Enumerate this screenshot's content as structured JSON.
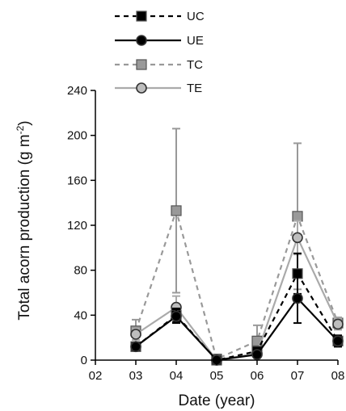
{
  "chart_data": {
    "type": "line",
    "title": "",
    "xlabel": "Date (year)",
    "ylabel": "Total acorn production (g m",
    "ylabel_sup": "-2",
    "ylabel_end": ")",
    "x": [
      "02",
      "03",
      "04",
      "05",
      "06",
      "07",
      "08"
    ],
    "ylim": [
      0,
      240
    ],
    "yticks": [
      "0",
      "40",
      "80",
      "120",
      "160",
      "200",
      "240"
    ],
    "grid": false,
    "legend_position": "top-left",
    "series": [
      {
        "name": "UC",
        "style": "dashed",
        "marker": "square",
        "line_color": "#000000",
        "marker_fill": "#000000",
        "values": [
          null,
          12,
          40,
          0,
          8,
          77,
          17
        ],
        "errors": [
          null,
          3,
          6,
          1,
          3,
          18,
          5
        ]
      },
      {
        "name": "UE",
        "style": "solid",
        "marker": "circle",
        "line_color": "#000000",
        "marker_fill": "#000000",
        "values": [
          null,
          12,
          39,
          0,
          5,
          55,
          17
        ],
        "errors": [
          null,
          3,
          6,
          1,
          2,
          22,
          5
        ]
      },
      {
        "name": "TC",
        "style": "dashed",
        "marker": "square",
        "line_color": "#999999",
        "marker_fill": "#999999",
        "values": [
          null,
          26,
          133,
          1,
          17,
          128,
          33
        ],
        "errors": [
          null,
          10,
          73,
          2,
          14,
          65,
          5
        ]
      },
      {
        "name": "TE",
        "style": "solid",
        "marker": "circle",
        "line_color": "#aaaaaa",
        "marker_fill": "#bdbdbd",
        "values": [
          null,
          23,
          47,
          0,
          6,
          109,
          32
        ],
        "errors": [
          null,
          5,
          10,
          1,
          4,
          15,
          5
        ]
      }
    ]
  }
}
